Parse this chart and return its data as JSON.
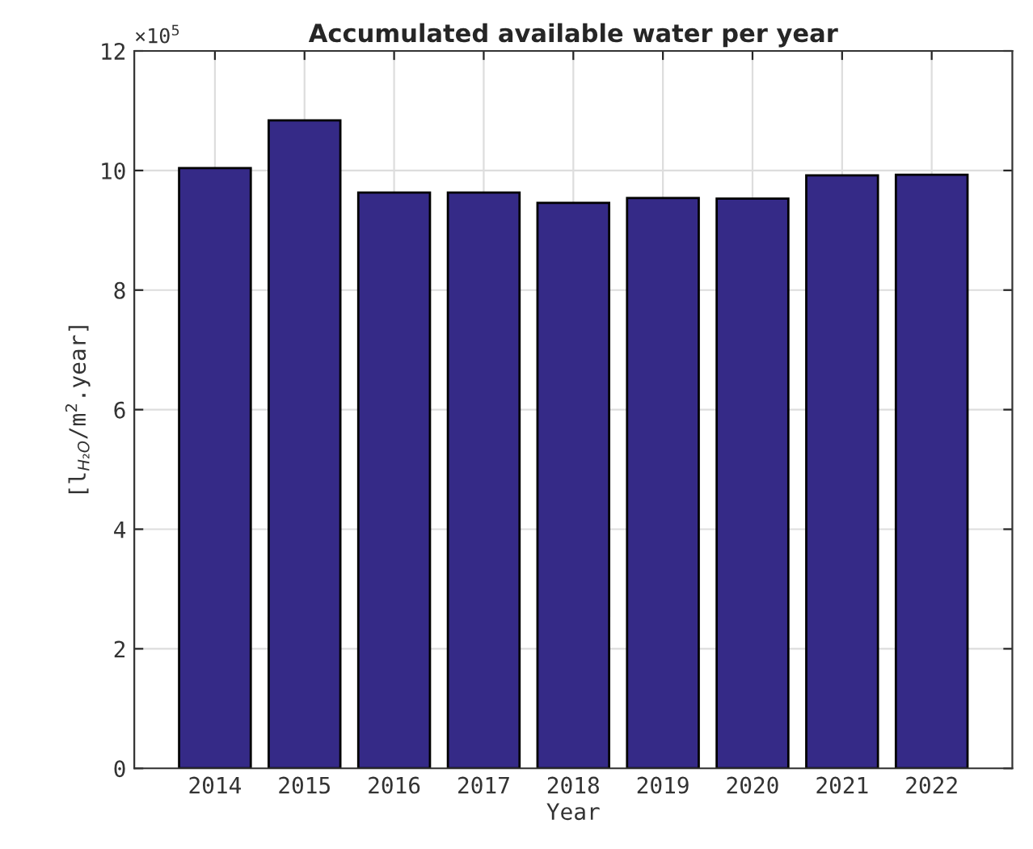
{
  "chart_data": {
    "type": "bar",
    "title": "Accumulated available water per year",
    "xlabel": "Year",
    "ylabel": "[l$_{H₂O}$/m$^{2}$.year]",
    "annotations": [
      "×10$^{5}$"
    ],
    "categories": [
      "2014",
      "2015",
      "2016",
      "2017",
      "2018",
      "2019",
      "2020",
      "2021",
      "2022"
    ],
    "values": [
      10.04,
      10.84,
      9.63,
      9.63,
      9.46,
      9.54,
      9.53,
      9.92,
      9.93
    ],
    "color": "#352a87",
    "ylim": [
      0,
      12
    ],
    "yticks": [
      0,
      2,
      4,
      6,
      8,
      10,
      12
    ],
    "grid": true
  }
}
